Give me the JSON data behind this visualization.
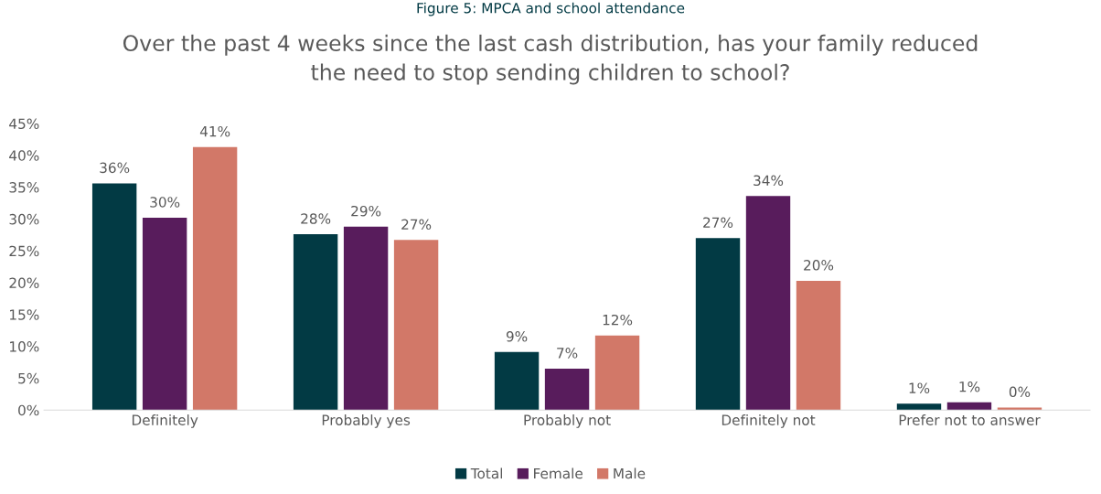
{
  "chart_data": {
    "type": "bar",
    "title": "Over the past 4 weeks since the last cash distribution, has your family reduced\nthe need to stop sending children to school?",
    "annotations": [
      "Figure 5: MPCA and school attendance"
    ],
    "categories": [
      "Definitely",
      "Probably yes",
      "Probably not",
      "Definitely not",
      "Prefer not to answer"
    ],
    "series": [
      {
        "name": "Total",
        "color": "#023a44",
        "values": [
          35.6,
          27.6,
          9.1,
          27.0,
          1.0
        ],
        "value_labels": [
          "36%",
          "28%",
          "9%",
          "27%",
          "1%"
        ]
      },
      {
        "name": "Female",
        "color": "#581c5c",
        "values": [
          30.2,
          28.8,
          6.5,
          33.6,
          1.2
        ],
        "value_labels": [
          "30%",
          "29%",
          "7%",
          "34%",
          "1%"
        ]
      },
      {
        "name": "Male",
        "color": "#d27868",
        "values": [
          41.3,
          26.7,
          11.7,
          20.3,
          0.4
        ],
        "value_labels": [
          "41%",
          "27%",
          "12%",
          "20%",
          "0%"
        ]
      }
    ],
    "ylim": [
      0,
      45
    ],
    "yticks": [
      {
        "value": 0,
        "label": "0%"
      },
      {
        "value": 5,
        "label": "5%"
      },
      {
        "value": 10,
        "label": "10%"
      },
      {
        "value": 15,
        "label": "15%"
      },
      {
        "value": 20,
        "label": "20%"
      },
      {
        "value": 25,
        "label": "25%"
      },
      {
        "value": 30,
        "label": "30%"
      },
      {
        "value": 35,
        "label": "35%"
      },
      {
        "value": 40,
        "label": "40%"
      },
      {
        "value": 45,
        "label": "45%"
      }
    ],
    "legend": "bottom",
    "grid": false
  }
}
